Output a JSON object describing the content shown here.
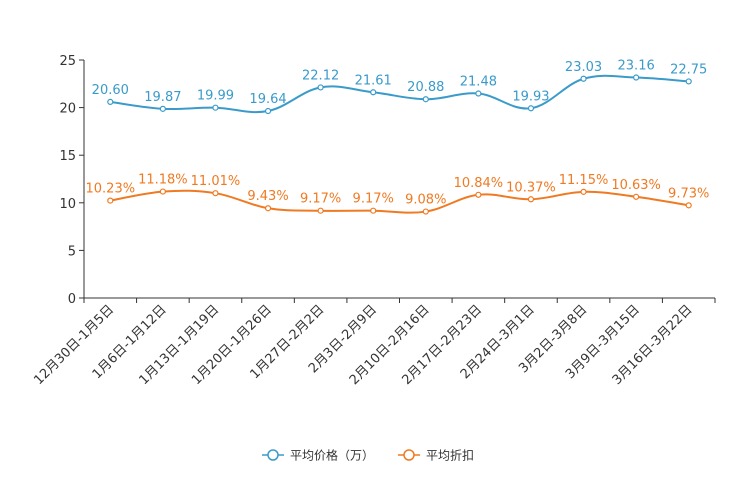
{
  "chart_data": {
    "type": "line",
    "title": "",
    "xlabel": "",
    "ylabel": "",
    "ylim": [
      0,
      25
    ],
    "yticks": [
      0,
      5,
      10,
      15,
      20,
      25
    ],
    "grid": false,
    "legend_position": "bottom-center",
    "categories": [
      "12月30日-1月5日",
      "1月6日-1月12日",
      "1月13日-1月19日",
      "1月20日-1月26日",
      "1月27日-2月2日",
      "2月3日-2月9日",
      "2月10日-2月16日",
      "2月17日-2月23日",
      "2月24日-3月1日",
      "3月2日-3月8日",
      "3月9日-3月15日",
      "3月16日-3月22日"
    ],
    "series": [
      {
        "name": "平均价格（万）",
        "color": "#3a9bcb",
        "values": [
          20.6,
          19.87,
          19.99,
          19.64,
          22.12,
          21.61,
          20.88,
          21.48,
          19.93,
          23.03,
          23.16,
          22.75
        ],
        "labels": [
          "20.60",
          "19.87",
          "19.99",
          "19.64",
          "22.12",
          "21.61",
          "20.88",
          "21.48",
          "19.93",
          "23.03",
          "23.16",
          "22.75"
        ]
      },
      {
        "name": "平均折扣",
        "color": "#f07a22",
        "values": [
          10.23,
          11.18,
          11.01,
          9.43,
          9.17,
          9.17,
          9.08,
          10.84,
          10.37,
          11.15,
          10.63,
          9.73
        ],
        "labels": [
          "10.23%",
          "11.18%",
          "11.01%",
          "9.43%",
          "9.17%",
          "9.17%",
          "9.08%",
          "10.84%",
          "10.37%",
          "11.15%",
          "10.63%",
          "9.73%"
        ]
      }
    ]
  }
}
